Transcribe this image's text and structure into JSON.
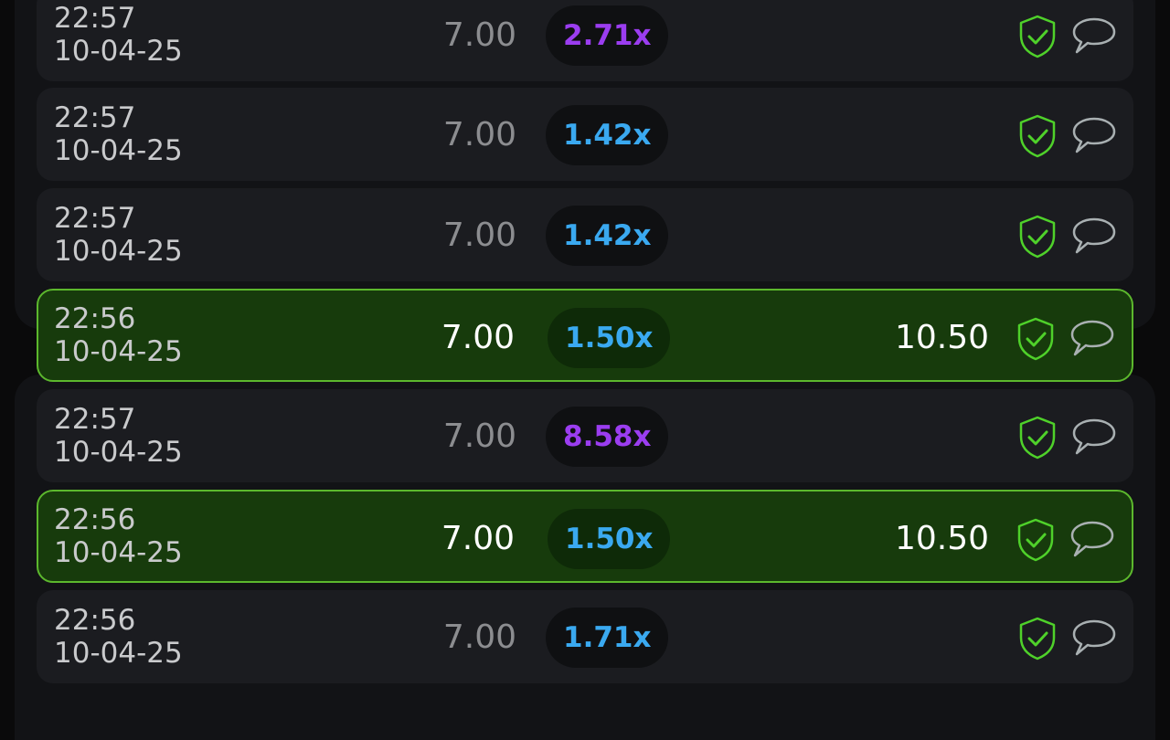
{
  "colors": {
    "win_bg": "#173b0c",
    "win_border": "#5cb82d",
    "purple": "#9b3df0",
    "blue": "#3aa9f0",
    "shield": "#4fd12a"
  },
  "rows": [
    {
      "time": "22:57",
      "date": "10-04-25",
      "bet": "7.00",
      "multiplier": "2.71x",
      "mult_color": "#9b3df0",
      "payout": "",
      "win": false
    },
    {
      "time": "22:57",
      "date": "10-04-25",
      "bet": "7.00",
      "multiplier": "1.42x",
      "mult_color": "#3aa9f0",
      "payout": "",
      "win": false
    },
    {
      "time": "22:57",
      "date": "10-04-25",
      "bet": "7.00",
      "multiplier": "1.42x",
      "mult_color": "#3aa9f0",
      "payout": "",
      "win": false
    },
    {
      "time": "22:56",
      "date": "10-04-25",
      "bet": "7.00",
      "multiplier": "1.50x",
      "mult_color": "#3aa9f0",
      "payout": "10.50",
      "win": true
    },
    {
      "time": "22:57",
      "date": "10-04-25",
      "bet": "7.00",
      "multiplier": "8.58x",
      "mult_color": "#9b3df0",
      "payout": "",
      "win": false
    },
    {
      "time": "22:56",
      "date": "10-04-25",
      "bet": "7.00",
      "multiplier": "1.50x",
      "mult_color": "#3aa9f0",
      "payout": "10.50",
      "win": true
    },
    {
      "time": "22:56",
      "date": "10-04-25",
      "bet": "7.00",
      "multiplier": "1.71x",
      "mult_color": "#3aa9f0",
      "payout": "",
      "win": false
    }
  ],
  "icons": {
    "verify": "shield-check-icon",
    "chat": "chat-bubble-icon"
  }
}
